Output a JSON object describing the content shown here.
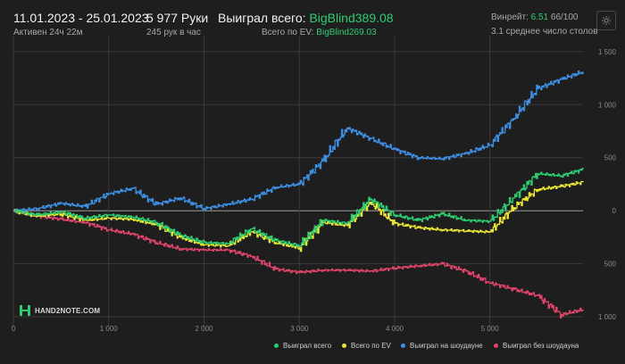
{
  "header": {
    "date_range": "11.01.2023 - 25.01.2023",
    "active_time": "Активен 24ч 22м",
    "hands": "5 977 Руки",
    "hands_per_hour": "245 рук в час",
    "won_total_label": "Выиграл всего:",
    "won_total_value": "BigBlind389.08",
    "ev_label": "Всего по EV:",
    "ev_value": "BigBlind269.03",
    "winrate_label": "Винрейт:",
    "winrate_value": "6.51",
    "winrate_count": "66/100",
    "avg_tables": "3.1 среднее число столов"
  },
  "settings_icon": "gear-icon",
  "logo": {
    "text": "HAND2NOTE.COM"
  },
  "colors": {
    "background": "#1e1e1e",
    "grid": "#3a3a3a",
    "zero_line": "#9a9a9a",
    "tick": "#8a8a8a"
  },
  "legend": [
    {
      "label": "Выиграл всего",
      "color": "#2ecc71"
    },
    {
      "label": "Всего по EV",
      "color": "#e8e534"
    },
    {
      "label": "Выиграл на шоудауне",
      "color": "#3d8ee0"
    },
    {
      "label": "Выиграл без шоудауна",
      "color": "#e0446a"
    }
  ],
  "chart_data": {
    "type": "line",
    "x_ticks": [
      {
        "v": 0,
        "label": "0"
      },
      {
        "v": 1000,
        "label": "1 000"
      },
      {
        "v": 2000,
        "label": "2 000"
      },
      {
        "v": 3000,
        "label": "3 000"
      },
      {
        "v": 4000,
        "label": "4 000"
      },
      {
        "v": 5000,
        "label": "5 000"
      }
    ],
    "y_ticks": [
      {
        "v": 1500,
        "label": "1 500"
      },
      {
        "v": 1000,
        "label": "1 000"
      },
      {
        "v": 500,
        "label": "500"
      },
      {
        "v": 0,
        "label": "0"
      },
      {
        "v": -500,
        "label": "500"
      },
      {
        "v": -1000,
        "label": "1 000"
      }
    ],
    "xlim": [
      0,
      5977
    ],
    "ylim": [
      -1100,
      1650
    ],
    "grid": true,
    "legend_position": "bottom-right",
    "series": [
      {
        "name": "Выиграл всего",
        "color": "#2ecc71",
        "x": [
          0,
          250,
          500,
          750,
          1000,
          1250,
          1500,
          1750,
          2000,
          2250,
          2500,
          2750,
          3000,
          3250,
          3500,
          3750,
          4000,
          4250,
          4500,
          4750,
          5000,
          5250,
          5500,
          5750,
          5977
        ],
        "y": [
          0,
          -40,
          -10,
          -70,
          -40,
          -60,
          -110,
          -230,
          -300,
          -310,
          -170,
          -280,
          -330,
          -90,
          -120,
          110,
          -40,
          -90,
          -30,
          -90,
          -100,
          120,
          350,
          330,
          390
        ]
      },
      {
        "name": "Всего по EV",
        "color": "#e8e534",
        "x": [
          0,
          250,
          500,
          750,
          1000,
          1250,
          1500,
          1750,
          2000,
          2250,
          2500,
          2750,
          3000,
          3250,
          3500,
          3750,
          4000,
          4250,
          4500,
          4750,
          5000,
          5250,
          5500,
          5750,
          5977
        ],
        "y": [
          0,
          -50,
          -30,
          -90,
          -70,
          -80,
          -130,
          -250,
          -320,
          -330,
          -200,
          -300,
          -350,
          -110,
          -140,
          80,
          -120,
          -160,
          -180,
          -190,
          -200,
          30,
          200,
          230,
          269
        ]
      },
      {
        "name": "Выиграл на шоудауне",
        "color": "#3d8ee0",
        "x": [
          0,
          250,
          500,
          750,
          1000,
          1250,
          1500,
          1750,
          2000,
          2250,
          2500,
          2750,
          3000,
          3250,
          3500,
          3750,
          4000,
          4250,
          4500,
          4750,
          5000,
          5250,
          5500,
          5750,
          5977
        ],
        "y": [
          0,
          20,
          70,
          40,
          160,
          210,
          60,
          120,
          20,
          60,
          110,
          220,
          250,
          470,
          780,
          680,
          580,
          500,
          490,
          540,
          620,
          870,
          1150,
          1240,
          1310
        ]
      },
      {
        "name": "Выиграл без шоудауна",
        "color": "#e0446a",
        "x": [
          0,
          250,
          500,
          750,
          1000,
          1250,
          1500,
          1750,
          2000,
          2250,
          2500,
          2750,
          3000,
          3250,
          3500,
          3750,
          4000,
          4250,
          4500,
          4750,
          5000,
          5250,
          5500,
          5750,
          5977
        ],
        "y": [
          0,
          -50,
          -80,
          -110,
          -180,
          -220,
          -300,
          -360,
          -370,
          -370,
          -430,
          -550,
          -580,
          -560,
          -560,
          -570,
          -540,
          -520,
          -500,
          -570,
          -680,
          -740,
          -800,
          -980,
          -930
        ]
      }
    ]
  }
}
